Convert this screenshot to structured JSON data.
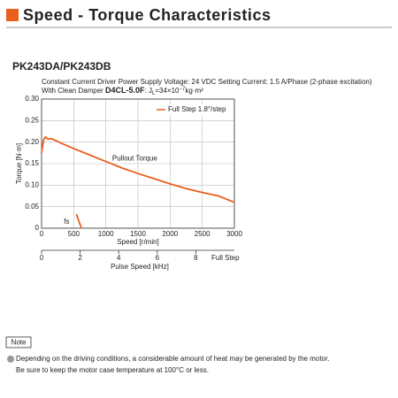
{
  "header": {
    "title": "Speed - Torque Characteristics",
    "model": "PK243DA/PK243DB",
    "conditions": "Constant Current Driver  Power Supply Voltage: 24 VDC   Setting Current: 1.5 A/Phase (2-phase excitation)",
    "damper_prefix": "With Clean Damper",
    "damper_model": "D4CL-5.0F",
    "inertia_symbol": ": J",
    "inertia_sub": "L",
    "inertia_value": "=34×10",
    "inertia_exp": "−7",
    "inertia_unit": "kg·m²"
  },
  "chart_data": {
    "type": "line",
    "xlabel": "Speed [r/min]",
    "ylabel": "Torque [N·m]",
    "xlim": [
      0,
      3000
    ],
    "xticks": [
      0,
      500,
      1000,
      1500,
      2000,
      2500,
      3000
    ],
    "ylim": [
      0,
      0.3
    ],
    "yticks": [
      0,
      0.05,
      {
        "value": 0.1,
        "label": "0.10"
      },
      0.15,
      {
        "value": 0.2,
        "label": "0.20"
      },
      0.25,
      {
        "value": 0.3,
        "label": "0.30"
      }
    ],
    "grid": true,
    "legend": "upper right",
    "series": [
      {
        "name": "Full Step 1.8°/step",
        "color": "#e8601c",
        "x": [
          0,
          30,
          60,
          100,
          150,
          200,
          300,
          500,
          750,
          1000,
          1250,
          1500,
          1750,
          2000,
          2250,
          2500,
          2750,
          3000
        ],
        "values": [
          0.175,
          0.205,
          0.212,
          0.207,
          0.208,
          0.205,
          0.198,
          0.185,
          0.17,
          0.155,
          0.14,
          0.127,
          0.115,
          0.103,
          0.092,
          0.083,
          0.075,
          0.06
        ]
      },
      {
        "name": "fs",
        "color": "#e8601c",
        "x": [
          540,
          620
        ],
        "values": [
          0.033,
          0
        ]
      }
    ],
    "annotation": "Pullout Torque",
    "x2label": "Pulse Speed [kHz]",
    "x2lim": [
      0,
      10
    ],
    "x2ticks": [
      0,
      2,
      4,
      6,
      8
    ],
    "x2note": "Full Step"
  },
  "note": {
    "label": "Note",
    "lines": [
      "Depending on the driving conditions, a considerable amount of heat may be generated by the motor.",
      "Be sure to keep the motor case temperature at 100°C or less."
    ]
  }
}
